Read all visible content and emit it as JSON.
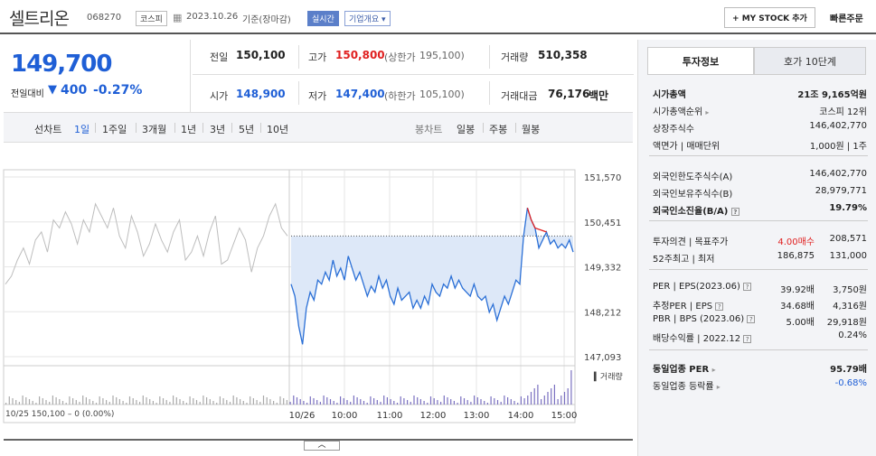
{
  "header": {
    "stock_name": "셀트리온",
    "stock_code": "068270",
    "market_badge": "코스피",
    "date": "2023.10.26",
    "date_suffix": "기준(장마감)",
    "realtime_badge": "실시간",
    "company_overview": "기업개요",
    "my_stock_button": "MY STOCK 추가",
    "quick_order": "빠른주문"
  },
  "price": {
    "current": "149,700",
    "change_label": "전일대비",
    "change_arrow": "▼",
    "change_value": "400",
    "change_rate": "-0.27%"
  },
  "quote": {
    "prev_close": {
      "label": "전일",
      "value": "150,100"
    },
    "high": {
      "label": "고가",
      "value": "150,800",
      "limit_label": "(상한가",
      "limit_value": "195,100)"
    },
    "volume": {
      "label": "거래량",
      "value": "510,358"
    },
    "open": {
      "label": "시가",
      "value": "148,900"
    },
    "low": {
      "label": "저가",
      "value": "147,400",
      "limit_label": "(하한가",
      "limit_value": "105,100)"
    },
    "amount": {
      "label": "거래대금",
      "value": "76,176",
      "unit": "백만"
    }
  },
  "tabs": {
    "line_chart": "선차트",
    "periods": [
      "1일",
      "1주일",
      "3개월",
      "1년",
      "3년",
      "5년",
      "10년"
    ],
    "candle_chart": "봉차트",
    "candle_periods": [
      "일봉",
      "주봉",
      "월봉"
    ]
  },
  "chart_data": {
    "type": "line",
    "ytick_labels": [
      "151,570",
      "150,451",
      "149,332",
      "148,212",
      "147,093"
    ],
    "xtick_labels": [
      "10/26",
      "10:00",
      "11:00",
      "12:00",
      "13:00",
      "14:00",
      "15:00"
    ],
    "prev_close_line": 150100,
    "volume_label": "거래량",
    "footer_text": "10/25 150,100 – 0 (0.00%)",
    "ylim": [
      147093,
      151570
    ],
    "colors": {
      "price": "#2a6fd6",
      "prev_day": "#bdbdbd",
      "fill": "#dde8f8",
      "up": "#e02020",
      "volume": "#7a70c0"
    },
    "prev_day_series": [
      148900,
      149100,
      149500,
      149800,
      149400,
      150000,
      150200,
      149700,
      150500,
      150300,
      150700,
      150400,
      149900,
      150500,
      150200,
      150900,
      150600,
      150300,
      150800,
      150100,
      149800,
      150600,
      150200,
      149600,
      149900,
      150400,
      150000,
      149700,
      150200,
      150500,
      149500,
      149700,
      150100,
      149600,
      150200,
      150600,
      149400,
      149500,
      149900,
      150300,
      150000,
      149200,
      149800,
      150100,
      150600,
      150900,
      150300,
      150100
    ],
    "series": [
      {
        "name": "10/26",
        "values": [
          148900,
          148600,
          147850,
          147400,
          148300,
          148700,
          148500,
          149000,
          148900,
          149200,
          149000,
          149500,
          149100,
          149300,
          149000,
          149600,
          149300,
          149000,
          149200,
          148900,
          148600,
          148850,
          148700,
          149100,
          148800,
          149000,
          148600,
          148400,
          148800,
          148500,
          148600,
          148700,
          148300,
          148500,
          148300,
          148600,
          148400,
          148900,
          148700,
          148600,
          148900,
          148800,
          149100,
          148800,
          149000,
          148800,
          148700,
          148600,
          148900,
          148600,
          148500,
          148600,
          148200,
          148400,
          148000,
          148300,
          148600,
          148400,
          148700,
          149000,
          148900,
          150100,
          150800,
          150500,
          150300,
          149800,
          150000,
          150200,
          149900,
          150000,
          149800,
          149900,
          149800,
          150000,
          149700
        ]
      }
    ]
  },
  "right_panel": {
    "tabs": [
      "투자정보",
      "호가 10단계"
    ],
    "rows_a": [
      {
        "label": "시가총액",
        "value": "21조 9,165억원"
      },
      {
        "label": "시가총액순위",
        "value": "코스피 12위"
      },
      {
        "label": "상장주식수",
        "value": "146,402,770"
      },
      {
        "label": "액면가 | 매매단위",
        "value": "1,000원 | 1주"
      }
    ],
    "rows_b": [
      {
        "label": "외국인한도주식수(A)",
        "value": "146,402,770"
      },
      {
        "label": "외국인보유주식수(B)",
        "value": "28,979,771"
      },
      {
        "label": "외국인소진율(B/A)",
        "value": "19.79%"
      }
    ],
    "rows_c": [
      {
        "label": "투자의견 | 목표주가",
        "value_a": "4.00매수",
        "value_b": "208,571"
      },
      {
        "label": "52주최고 | 최저",
        "value_a": "186,875",
        "value_b": "131,000"
      }
    ],
    "rows_d": [
      {
        "label": "PER | EPS(2023.06)",
        "value_a": "39.92배",
        "value_b": "3,750원"
      },
      {
        "label": "추정PER | EPS",
        "value_a": "34.68배",
        "value_b": "4,316원"
      },
      {
        "label": "PBR | BPS (2023.06)",
        "value_a": "5.00배",
        "value_b": "29,918원"
      },
      {
        "label": "배당수익률 | 2022.12",
        "value_a": "",
        "value_b": "0.24%"
      }
    ],
    "rows_e": [
      {
        "label": "동일업종 PER",
        "value": "95.79배"
      },
      {
        "label": "동일업종 등락률",
        "value": "-0.68%"
      }
    ]
  }
}
